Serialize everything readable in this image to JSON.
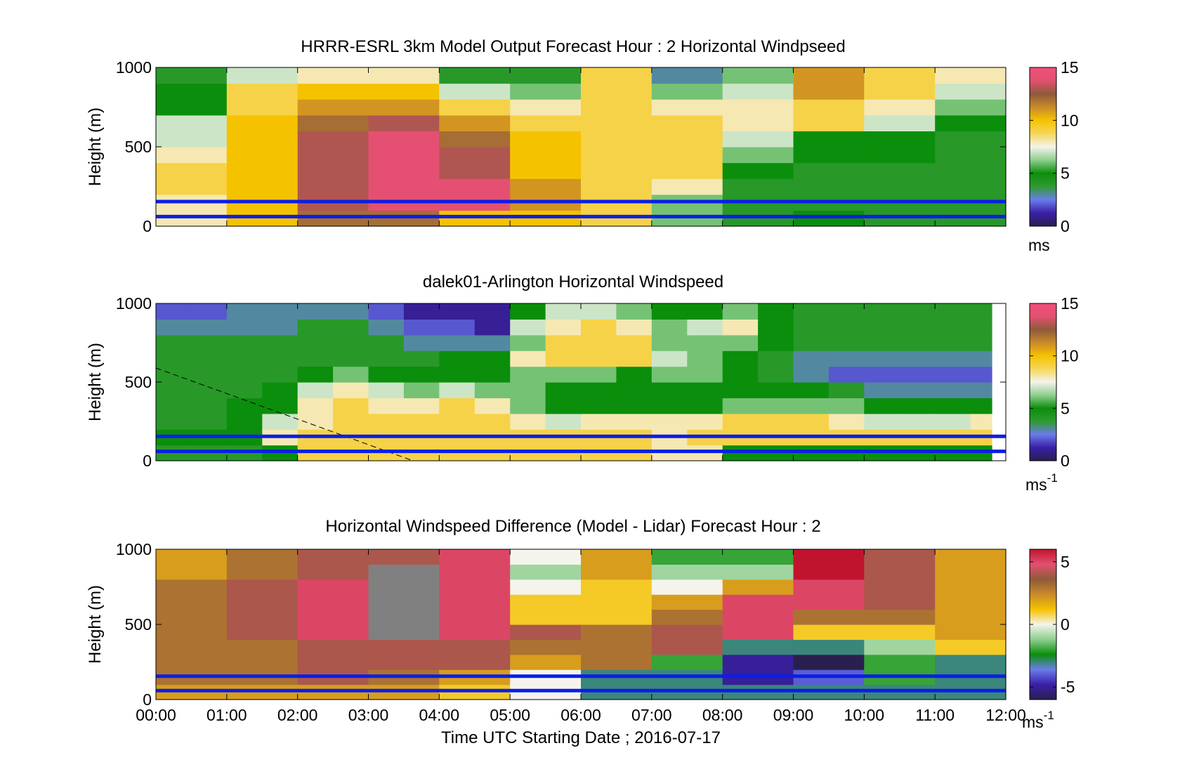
{
  "colors": {
    "wind_colormap": [
      "#2a1f4f",
      "#3a1fa8",
      "#6a7dea",
      "#2f9a30",
      "#0b8e0b",
      "#8fcf8f",
      "#f4f4ec",
      "#f6d65a",
      "#f5c200",
      "#c98a2a",
      "#8f5a3a",
      "#e25070",
      "#f0507a"
    ],
    "diff_colormap": [
      "#2a1f4f",
      "#3a1fa8",
      "#6a7dea",
      "#0b8e0b",
      "#8fcf8f",
      "#f4f4ec",
      "#f5c200",
      "#c98a2a",
      "#8f5a3a",
      "#e25070",
      "#c0142e"
    ],
    "reference_line": "#0a1ee6",
    "missing": "#808080"
  },
  "chart_data": [
    {
      "type": "heatmap",
      "title": "HRRR-ESRL 3km Model Output   Forecast Hour : 2 Horizontal Windpseed",
      "ylabel": "Height (m)",
      "ylim": [
        0,
        1000
      ],
      "yticks": [
        "0",
        "500",
        "1000"
      ],
      "x_hours": [
        0,
        1,
        2,
        3,
        4,
        5,
        6,
        7,
        8,
        9,
        10,
        11
      ],
      "height_levels_m": [
        50,
        150,
        250,
        350,
        450,
        550,
        650,
        750,
        850,
        950
      ],
      "values_ms": [
        [
          8,
          10,
          12,
          12,
          10,
          10,
          9,
          6,
          4,
          5,
          4,
          4
        ],
        [
          8,
          10,
          13,
          14,
          14,
          11,
          9,
          6,
          4,
          4,
          4,
          4
        ],
        [
          9,
          10,
          13,
          14,
          14,
          11,
          9,
          8,
          4,
          4,
          4,
          4
        ],
        [
          9,
          10,
          13,
          14,
          13,
          10,
          9,
          9,
          5,
          4,
          4,
          4
        ],
        [
          8,
          10,
          13,
          14,
          13,
          10,
          9,
          9,
          6,
          5,
          5,
          4
        ],
        [
          7,
          10,
          13,
          14,
          12,
          10,
          9,
          9,
          7,
          5,
          5,
          4
        ],
        [
          7,
          10,
          12,
          13,
          11,
          9,
          9,
          9,
          8,
          9,
          7,
          5
        ],
        [
          5,
          9,
          11,
          11,
          9,
          8,
          9,
          8,
          8,
          9,
          8,
          6
        ],
        [
          5,
          9,
          10,
          10,
          7,
          6,
          9,
          6,
          7,
          11,
          9,
          7
        ],
        [
          4,
          7,
          8,
          8,
          4,
          4,
          9,
          3,
          6,
          11,
          9,
          8
        ]
      ],
      "reference_lines_m": [
        60,
        155
      ],
      "colorbar": {
        "ticks": [
          "0",
          "5",
          "10",
          "15"
        ],
        "range": [
          0,
          15
        ],
        "unit": "ms"
      }
    },
    {
      "type": "heatmap",
      "title": "dalek01-Arlington  Horizontal Windspeed",
      "ylabel": "Height (m)",
      "ylim": [
        0,
        1000
      ],
      "yticks": [
        "0",
        "500",
        "1000"
      ],
      "x_hours": [
        0,
        0.5,
        1,
        1.5,
        2,
        2.5,
        3,
        3.5,
        4,
        4.5,
        5,
        5.5,
        6,
        6.5,
        7,
        7.5,
        8,
        8.5,
        9,
        9.5,
        10,
        10.5,
        11,
        11.5
      ],
      "height_levels_m": [
        50,
        150,
        250,
        350,
        450,
        550,
        650,
        750,
        850,
        950
      ],
      "values_ms": [
        [
          4,
          4,
          4,
          5,
          9,
          9,
          9,
          9,
          9,
          9,
          9,
          9,
          9,
          9,
          8,
          8,
          5,
          5,
          5,
          5,
          5,
          5,
          5,
          5
        ],
        [
          5,
          5,
          5,
          8,
          9,
          9,
          9,
          9,
          9,
          9,
          9,
          9,
          9,
          9,
          8,
          9,
          9,
          9,
          9,
          9,
          9,
          9,
          9,
          9
        ],
        [
          4,
          4,
          5,
          7,
          8,
          9,
          9,
          9,
          9,
          9,
          8,
          7,
          8,
          8,
          8,
          8,
          9,
          9,
          9,
          8,
          7,
          7,
          7,
          8
        ],
        [
          4,
          4,
          5,
          5,
          8,
          9,
          8,
          8,
          9,
          8,
          6,
          5,
          5,
          5,
          5,
          5,
          6,
          6,
          6,
          6,
          5,
          5,
          5,
          5
        ],
        [
          4,
          4,
          4,
          5,
          7,
          8,
          7,
          6,
          7,
          6,
          6,
          5,
          5,
          5,
          5,
          5,
          5,
          5,
          5,
          4,
          3,
          3,
          3,
          3
        ],
        [
          4,
          4,
          4,
          4,
          5,
          6,
          5,
          5,
          5,
          5,
          6,
          6,
          6,
          5,
          6,
          6,
          5,
          4,
          3,
          2,
          2,
          2,
          2,
          2
        ],
        [
          4,
          4,
          4,
          4,
          4,
          4,
          4,
          4,
          5,
          5,
          8,
          9,
          9,
          9,
          7,
          6,
          5,
          4,
          3,
          3,
          3,
          3,
          3,
          3
        ],
        [
          4,
          4,
          4,
          4,
          4,
          4,
          4,
          3,
          3,
          3,
          6,
          9,
          9,
          9,
          6,
          6,
          6,
          5,
          4,
          4,
          4,
          4,
          4,
          4
        ],
        [
          3,
          3,
          3,
          3,
          4,
          4,
          3,
          2,
          2,
          1,
          7,
          8,
          9,
          8,
          6,
          7,
          8,
          5,
          4,
          4,
          4,
          4,
          4,
          4
        ],
        [
          2,
          2,
          3,
          3,
          3,
          3,
          2,
          1,
          1,
          1,
          5,
          7,
          7,
          6,
          5,
          5,
          6,
          5,
          4,
          4,
          4,
          4,
          4,
          4
        ]
      ],
      "reference_lines_m": [
        60,
        155
      ],
      "colorbar": {
        "ticks": [
          "0",
          "5",
          "10",
          "15"
        ],
        "range": [
          0,
          15
        ],
        "unit": "ms",
        "unit_exp": "-1"
      }
    },
    {
      "type": "heatmap",
      "title": "Horizontal Windspeed Difference (Model - Lidar) Forecast Hour : 2",
      "ylabel": "Height (m)",
      "xlabel": "Time UTC  Starting Date ; 2016-07-17",
      "ylim": [
        0,
        1000
      ],
      "yticks": [
        "0",
        "500",
        "1000"
      ],
      "xticks": [
        "00:00",
        "01:00",
        "02:00",
        "03:00",
        "04:00",
        "05:00",
        "06:00",
        "07:00",
        "08:00",
        "09:00",
        "10:00",
        "11:00",
        "12:00"
      ],
      "x_hours": [
        0,
        1,
        2,
        3,
        4,
        5,
        6,
        7,
        8,
        9,
        10,
        11
      ],
      "height_levels_m": [
        50,
        150,
        250,
        350,
        450,
        550,
        650,
        750,
        850,
        950
      ],
      "values_ms": [
        [
          2,
          2,
          2,
          2,
          1,
          0,
          -3,
          -3,
          -3,
          -3,
          -3,
          -3
        ],
        [
          3,
          3,
          4,
          3,
          2,
          0,
          -3,
          -3,
          -5,
          -4,
          -2,
          -3
        ],
        [
          3,
          3,
          4,
          4,
          4,
          2,
          3,
          -2,
          -5,
          -6,
          -2,
          -3
        ],
        [
          3,
          3,
          4,
          4,
          4,
          3,
          3,
          4,
          -3,
          -3,
          -1,
          1
        ],
        [
          3,
          4,
          5,
          null,
          5,
          4,
          3,
          4,
          5,
          1,
          1,
          2
        ],
        [
          3,
          4,
          5,
          null,
          5,
          1,
          1,
          3,
          5,
          3,
          3,
          2
        ],
        [
          3,
          4,
          5,
          null,
          5,
          1,
          1,
          2,
          5,
          5,
          4,
          2
        ],
        [
          3,
          4,
          5,
          null,
          5,
          0,
          1,
          0,
          2,
          5,
          4,
          2
        ],
        [
          2,
          3,
          4,
          null,
          5,
          -1,
          2,
          -1,
          -1,
          6,
          4,
          2
        ],
        [
          2,
          3,
          4,
          4,
          5,
          0,
          2,
          -2,
          -2,
          6,
          4,
          2
        ]
      ],
      "reference_lines_m": [
        60,
        155
      ],
      "colorbar": {
        "ticks": [
          "-5",
          "0",
          "5"
        ],
        "range": [
          -6,
          6
        ],
        "unit": "ms",
        "unit_exp": "-1"
      }
    }
  ]
}
